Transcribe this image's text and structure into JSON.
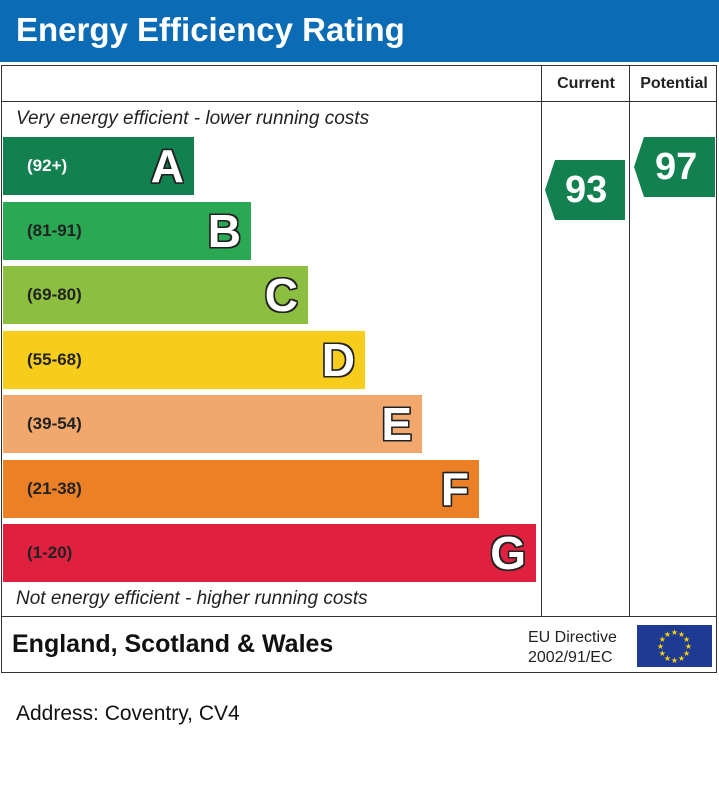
{
  "header": {
    "title": "Energy Efficiency Rating"
  },
  "columns": {
    "current": "Current",
    "potential": "Potential"
  },
  "notes": {
    "top": "Very energy efficient - lower running costs",
    "bottom": "Not energy efficient - higher running costs"
  },
  "chart_data": {
    "type": "bar",
    "title": "Energy Efficiency Rating",
    "categories": [
      "A",
      "B",
      "C",
      "D",
      "E",
      "F",
      "G"
    ],
    "ranges": [
      "(92+)",
      "(81-91)",
      "(69-80)",
      "(55-68)",
      "(39-54)",
      "(21-38)",
      "(1-20)"
    ],
    "colors": [
      "#12804f",
      "#2aa854",
      "#8cbf3f",
      "#f7cd1c",
      "#f2a86c",
      "#ec8027",
      "#e0203f"
    ],
    "current": {
      "label": "Current",
      "value": 93,
      "band": "A",
      "color": "#12804f"
    },
    "potential": {
      "label": "Potential",
      "value": 97,
      "band": "A",
      "color": "#12804f"
    }
  },
  "footer": {
    "region": "England, Scotland & Wales",
    "directive_line1": "EU Directive",
    "directive_line2": "2002/91/EC",
    "flag_icon": "eu-flag-icon"
  },
  "address": "Address: Coventry, CV4"
}
